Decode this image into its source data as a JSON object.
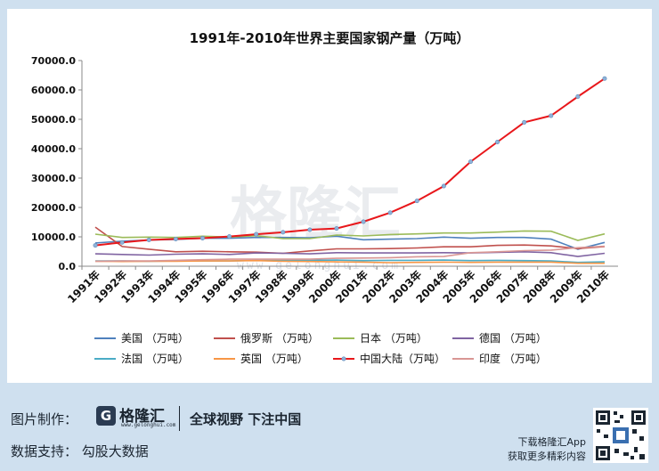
{
  "chart_data": {
    "type": "line",
    "title": "1991年-2010年世界主要国家钢产量（万吨）",
    "categories": [
      "1991年",
      "1992年",
      "1993年",
      "1994年",
      "1995年",
      "1996年",
      "1997年",
      "1998年",
      "1999年",
      "2000年",
      "2001年",
      "2002年",
      "2003年",
      "2004年",
      "2005年",
      "2006年",
      "2007年",
      "2008年",
      "2009年",
      "2010年"
    ],
    "yticks": [
      "70000.0",
      "60000.0",
      "50000.0",
      "40000.0",
      "30000.0",
      "20000.0",
      "10000.0",
      "0.0"
    ],
    "ylim": [
      0,
      70000
    ],
    "grid": false,
    "legend_position": "bottom",
    "series": [
      {
        "name": "美国  （万吨）",
        "color": "#4f81bd",
        "values": [
          7900,
          8500,
          8900,
          9100,
          9500,
          9500,
          9800,
          9800,
          9700,
          10200,
          9000,
          9200,
          9400,
          9900,
          9500,
          9800,
          9800,
          9200,
          5800,
          8100
        ]
      },
      {
        "name": "俄罗斯 （万吨）",
        "color": "#c0504d",
        "values": [
          13300,
          6700,
          5800,
          4900,
          5100,
          4900,
          4800,
          4400,
          5200,
          5900,
          5900,
          6000,
          6200,
          6600,
          6600,
          7100,
          7200,
          6900,
          6000,
          6700
        ]
      },
      {
        "name": "日本  （万吨）",
        "color": "#9bbb59",
        "values": [
          10900,
          9800,
          9900,
          9800,
          10200,
          9900,
          10400,
          9400,
          9400,
          10600,
          10300,
          10800,
          11000,
          11300,
          11300,
          11600,
          12000,
          11900,
          8800,
          11000
        ]
      },
      {
        "name": "德国  （万吨）",
        "color": "#8064a2",
        "values": [
          4200,
          4000,
          3800,
          4100,
          4200,
          4000,
          4500,
          4400,
          4200,
          4600,
          4500,
          4500,
          4500,
          4600,
          4500,
          4700,
          4900,
          4600,
          3300,
          4400
        ]
      },
      {
        "name": "法国  （万吨）",
        "color": "#4bacc6",
        "values": [
          1800,
          1800,
          1700,
          1800,
          1800,
          1800,
          2000,
          2000,
          2000,
          2100,
          1900,
          2000,
          2000,
          2100,
          1900,
          2000,
          1900,
          1800,
          1300,
          1500
        ]
      },
      {
        "name": "英国  （万吨）",
        "color": "#f79646",
        "values": [
          1700,
          1600,
          1700,
          1700,
          1800,
          1800,
          1900,
          1700,
          1600,
          1500,
          1400,
          1200,
          1300,
          1400,
          1300,
          1400,
          1400,
          1400,
          1000,
          1000
        ]
      },
      {
        "name": "中国大陆（万吨）",
        "color": "#e8171b",
        "marker": true,
        "values": [
          7100,
          8100,
          8950,
          9260,
          9540,
          10120,
          10890,
          11560,
          12430,
          12850,
          15160,
          18230,
          22230,
          27280,
          35580,
          42270,
          48960,
          51230,
          57730,
          63870
        ]
      },
      {
        "name": "印度  （万吨）",
        "color": "#d99694",
        "values": [
          1700,
          1800,
          1800,
          2000,
          2200,
          2400,
          2400,
          2400,
          2400,
          2700,
          2800,
          2900,
          3200,
          3300,
          4600,
          4900,
          5300,
          5500,
          6300,
          6800
        ]
      }
    ]
  },
  "watermark": {
    "text": "格隆汇",
    "url": "www.gelonghui.com"
  },
  "footer": {
    "made_by_label": "图片制作：",
    "brand": "格隆汇",
    "brand_url": "www.gelonghui.com",
    "slogan": "全球视野 下注中国",
    "data_support_label": "数据支持：  勾股大数据",
    "download_line1": "下载格隆汇App",
    "download_line2": "获取更多精彩内容"
  }
}
